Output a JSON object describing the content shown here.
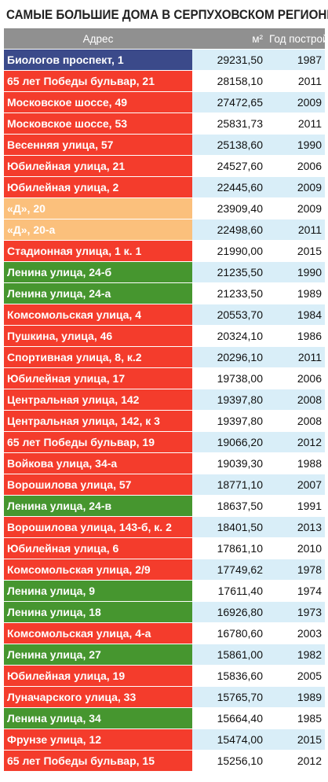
{
  "title": "САМЫЕ БОЛЬШИЕ ДОМА В СЕРПУХОВСКОМ РЕГИОНЕ*",
  "header": {
    "address": "Адрес",
    "area": "м²",
    "year": "Год постройки"
  },
  "colors": {
    "blue": "#3b4a8a",
    "red": "#f43c2c",
    "orange": "#fbc07c",
    "green": "#46962f"
  },
  "rows": [
    {
      "address": "Биологов проспект, 1",
      "area": "29231,50",
      "year": "1987",
      "color": "blue"
    },
    {
      "address": "65 лет Победы бульвар, 21",
      "area": "28158,10",
      "year": "2011",
      "color": "red"
    },
    {
      "address": "Московское шоссе, 49",
      "area": "27472,65",
      "year": "2009",
      "color": "red"
    },
    {
      "address": "Московское шоссе, 53",
      "area": "25831,73",
      "year": "2011",
      "color": "red"
    },
    {
      "address": "Весенняя улица, 57",
      "area": "25138,60",
      "year": "1990",
      "color": "red"
    },
    {
      "address": "Юбилейная улица, 21",
      "area": "24527,60",
      "year": "2006",
      "color": "red"
    },
    {
      "address": "Юбилейная улица, 2",
      "area": "22445,60",
      "year": "2009",
      "color": "red"
    },
    {
      "address": "«Д», 20",
      "area": "23909,40",
      "year": "2009",
      "color": "orange"
    },
    {
      "address": "«Д», 20-а",
      "area": "22498,60",
      "year": "2011",
      "color": "orange"
    },
    {
      "address": "Стадионная улица, 1 к. 1",
      "area": "21990,00",
      "year": "2015",
      "color": "red"
    },
    {
      "address": "Ленина улица, 24-б",
      "area": "21235,50",
      "year": "1990",
      "color": "green"
    },
    {
      "address": "Ленина улица, 24-а",
      "area": "21233,50",
      "year": "1989",
      "color": "green"
    },
    {
      "address": "Комсомольская улица, 4",
      "area": "20553,70",
      "year": "1984",
      "color": "red"
    },
    {
      "address": "Пушкина, улица, 46",
      "area": "20324,10",
      "year": "1986",
      "color": "red"
    },
    {
      "address": "Спортивная улица, 8, к.2",
      "area": "20296,10",
      "year": "2011",
      "color": "red"
    },
    {
      "address": "Юбилейная улица, 17",
      "area": "19738,00",
      "year": "2006",
      "color": "red"
    },
    {
      "address": "Центральная улица, 142",
      "area": "19397,80",
      "year": "2008",
      "color": "red"
    },
    {
      "address": "Центральная улица, 142, к 3",
      "area": "19397,80",
      "year": "2008",
      "color": "red"
    },
    {
      "address": "65 лет Победы бульвар, 19",
      "area": "19066,20",
      "year": "2012",
      "color": "red"
    },
    {
      "address": "Войкова улица, 34-а",
      "area": "19039,30",
      "year": "1988",
      "color": "red"
    },
    {
      "address": "Ворошилова улица, 57",
      "area": "18771,10",
      "year": "2007",
      "color": "red"
    },
    {
      "address": "Ленина улица, 24-в",
      "area": "18637,50",
      "year": "1991",
      "color": "green"
    },
    {
      "address": "Ворошилова улица, 143-б, к. 2",
      "area": "18401,50",
      "year": "2013",
      "color": "red"
    },
    {
      "address": "Юбилейная улица, 6",
      "area": "17861,10",
      "year": "2010",
      "color": "red"
    },
    {
      "address": "Комсомольская улица, 2/9",
      "area": "17749,62",
      "year": "1978",
      "color": "red"
    },
    {
      "address": "Ленина улица, 9",
      "area": "17611,40",
      "year": "1974",
      "color": "green"
    },
    {
      "address": "Ленина улица, 18",
      "area": "16926,80",
      "year": "1973",
      "color": "green"
    },
    {
      "address": "Комсомольская улица, 4-а",
      "area": "16780,60",
      "year": "2003",
      "color": "red"
    },
    {
      "address": "Ленина улица, 27",
      "area": "15861,00",
      "year": "1982",
      "color": "green"
    },
    {
      "address": "Юбилейная улица, 19",
      "area": "15836,60",
      "year": "2005",
      "color": "red"
    },
    {
      "address": "Луначарского улица, 33",
      "area": "15765,70",
      "year": "1989",
      "color": "red"
    },
    {
      "address": "Ленина улица, 34",
      "area": "15664,40",
      "year": "1985",
      "color": "green"
    },
    {
      "address": "Фрунзе улица, 12",
      "area": "15474,00",
      "year": "2015",
      "color": "red"
    },
    {
      "address": "65 лет Победы бульвар, 15",
      "area": "15256,10",
      "year": "2012",
      "color": "red"
    }
  ]
}
